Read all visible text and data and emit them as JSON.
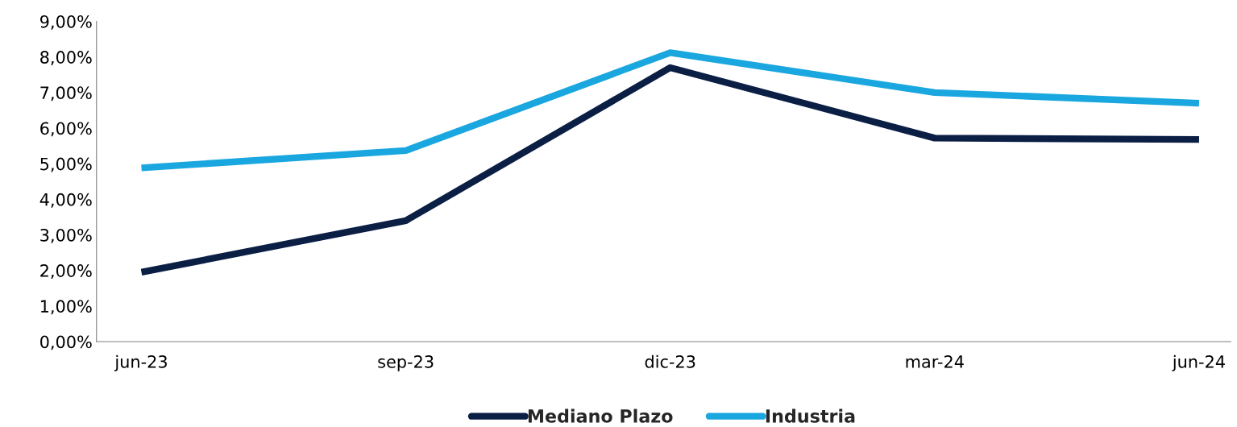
{
  "chart_data": {
    "type": "line",
    "categories": [
      "jun-23",
      "sep-23",
      "dic-23",
      "mar-24",
      "jun-24"
    ],
    "series": [
      {
        "name": "Mediano Plazo",
        "color": "#0b1f45",
        "values": [
          1.95,
          3.4,
          7.7,
          5.72,
          5.68
        ]
      },
      {
        "name": "Industria",
        "color": "#1aa7e0",
        "values": [
          4.88,
          5.37,
          8.12,
          7.0,
          6.7
        ]
      }
    ],
    "ylim": [
      0,
      9
    ],
    "yticks": [
      {
        "value": 0,
        "label": "0,00%"
      },
      {
        "value": 1,
        "label": "1,00%"
      },
      {
        "value": 2,
        "label": "2,00%"
      },
      {
        "value": 3,
        "label": "3,00%"
      },
      {
        "value": 4,
        "label": "4,00%"
      },
      {
        "value": 5,
        "label": "5,00%"
      },
      {
        "value": 6,
        "label": "6,00%"
      },
      {
        "value": 7,
        "label": "7,00%"
      },
      {
        "value": 8,
        "label": "8,00%"
      },
      {
        "value": 9,
        "label": "9,00%"
      }
    ],
    "grid": false,
    "legend": "bottom",
    "marker": "none",
    "line_style": "solid"
  }
}
